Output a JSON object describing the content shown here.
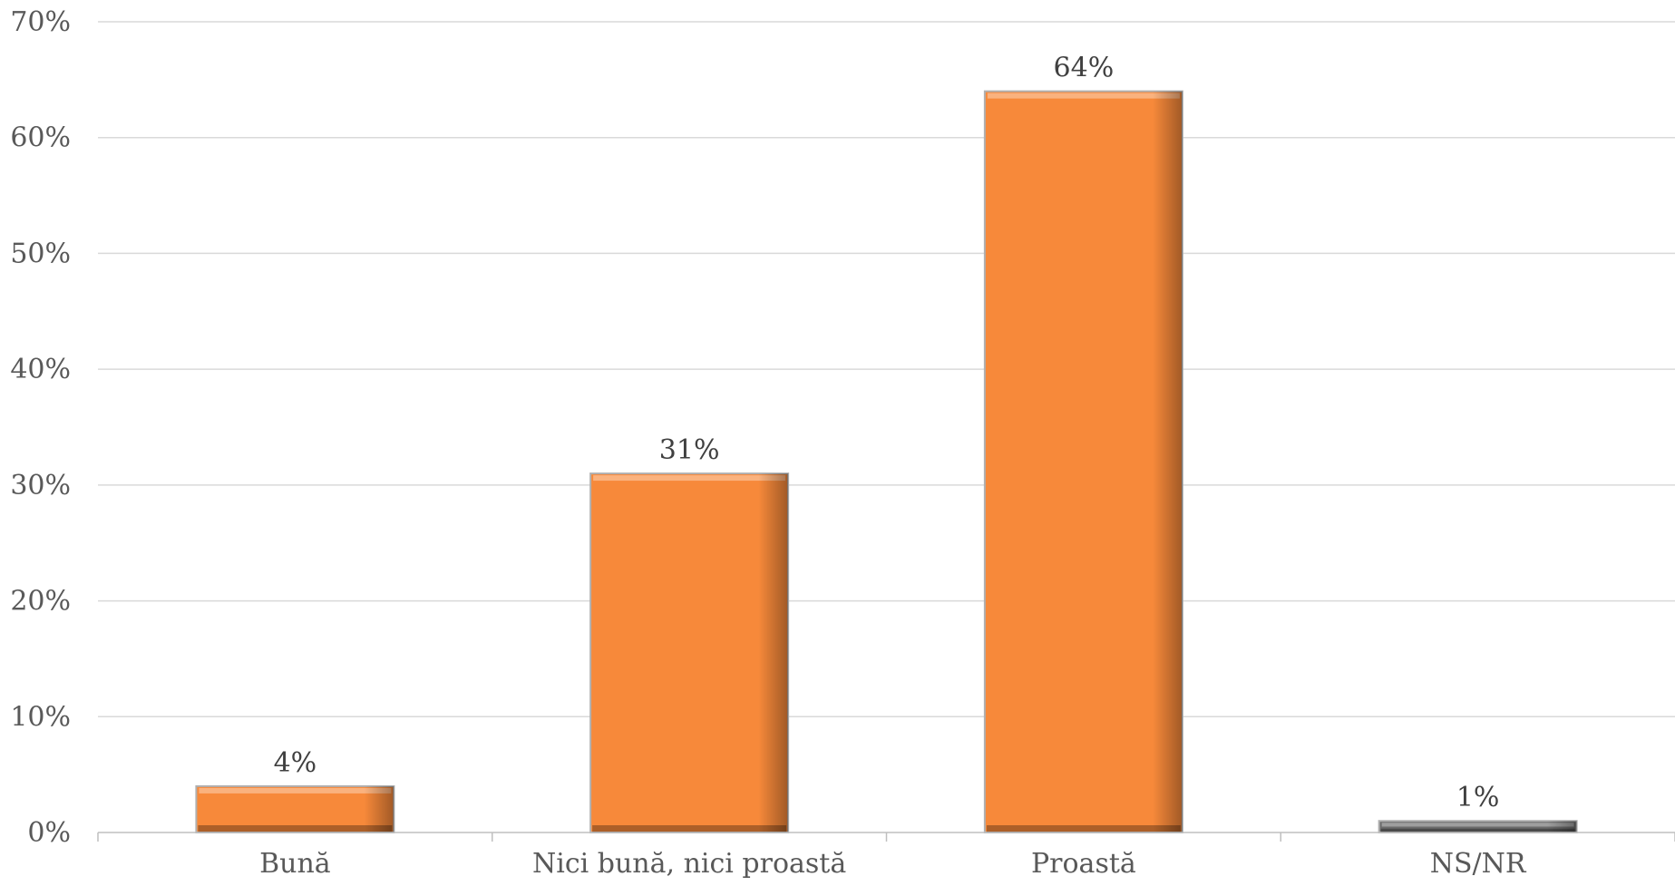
{
  "chart_data": {
    "type": "bar",
    "categories": [
      "Bună",
      "Nici bună, nici proastă",
      "Proastă",
      "NS/NR"
    ],
    "values": [
      4,
      31,
      64,
      1
    ],
    "value_labels": [
      "4%",
      "31%",
      "64%",
      "1%"
    ],
    "y_ticks": [
      "0%",
      "10%",
      "20%",
      "30%",
      "40%",
      "50%",
      "60%",
      "70%"
    ],
    "ylim": [
      0,
      70
    ],
    "ytick_step": 10,
    "grid": true,
    "bar_colors": [
      "#f7893a",
      "#f7893a",
      "#f7893a",
      "#6b6b6b"
    ]
  }
}
